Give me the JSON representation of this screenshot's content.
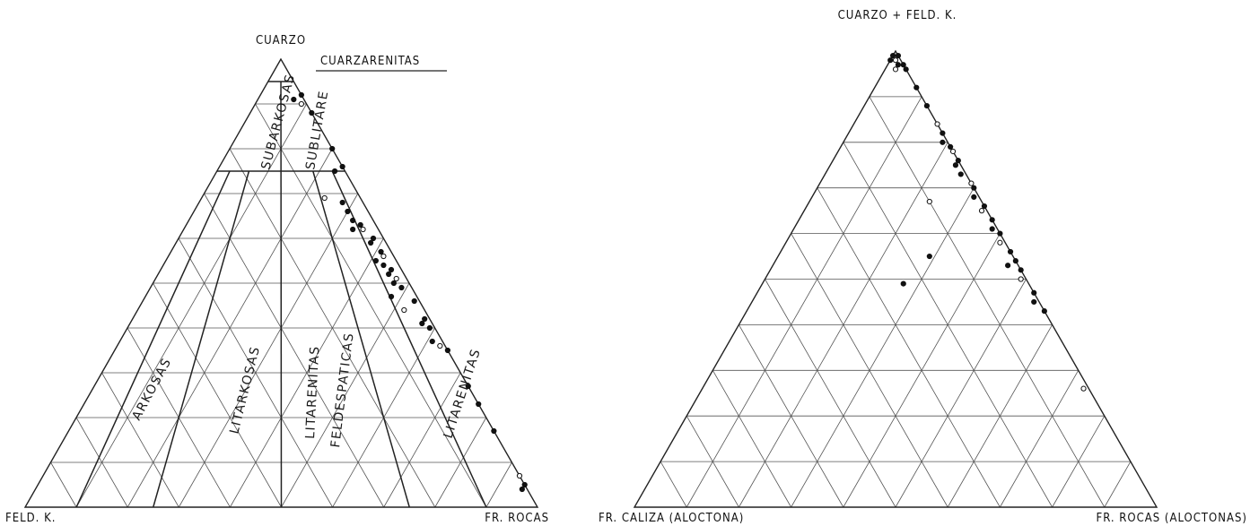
{
  "left_diagram": {
    "apex_top": "CUARZO",
    "apex_left": "FELD. K.",
    "apex_right": "FR. ROCAS",
    "fields": {
      "cuarzarenitas": "CUARZARENITAS",
      "subarkosas": "SUBARKOSAS",
      "sublitarenitas": "SUBLITARE",
      "arkosas": "ARKOSAS",
      "litarkosas": "LITARKOSAS",
      "litarenitas_feldespaticas_1": "LITARENITAS",
      "litarenitas_feldespaticas_2": "FELDESPATICAS",
      "litarenitas": "LITARENITAS"
    }
  },
  "right_diagram": {
    "apex_top": "CUARZO + FELD. K.",
    "apex_left": "FR. CALIZA (ALOCTONA)",
    "apex_right": "FR. ROCAS (ALOCTONAS)"
  },
  "chart_data": [
    {
      "type": "scatter",
      "ternary": true,
      "axes": [
        "CUARZO",
        "FELD. K.",
        "FR. ROCAS"
      ],
      "units": "percent",
      "points": [
        [
          92,
          0,
          8
        ],
        [
          91,
          2,
          7
        ],
        [
          90,
          1,
          9
        ],
        [
          88,
          0,
          12
        ],
        [
          80,
          0,
          20
        ],
        [
          75,
          2,
          23
        ],
        [
          76,
          0,
          24
        ],
        [
          69,
          7,
          24
        ],
        [
          68,
          4,
          28
        ],
        [
          66,
          4,
          30
        ],
        [
          64,
          4,
          32
        ],
        [
          63,
          3,
          34
        ],
        [
          62,
          3,
          35
        ],
        [
          62,
          5,
          33
        ],
        [
          60,
          2,
          38
        ],
        [
          59,
          3,
          38
        ],
        [
          57,
          2,
          41
        ],
        [
          56,
          2,
          42
        ],
        [
          55,
          4,
          41
        ],
        [
          54,
          3,
          43
        ],
        [
          53,
          2,
          45
        ],
        [
          52,
          3,
          45
        ],
        [
          51,
          2,
          47
        ],
        [
          50,
          3,
          47
        ],
        [
          49,
          2,
          49
        ],
        [
          47,
          5,
          48
        ],
        [
          46,
          1,
          53
        ],
        [
          44,
          4,
          52
        ],
        [
          42,
          1,
          57
        ],
        [
          41,
          2,
          57
        ],
        [
          40,
          1,
          59
        ],
        [
          37,
          2,
          61
        ],
        [
          36,
          1,
          63
        ],
        [
          35,
          0,
          65
        ],
        [
          27,
          0,
          73
        ],
        [
          23,
          0,
          77
        ],
        [
          17,
          0,
          83
        ],
        [
          7,
          0,
          93
        ],
        [
          5,
          0,
          95
        ],
        [
          4,
          1,
          95
        ]
      ]
    },
    {
      "type": "scatter",
      "ternary": true,
      "axes": [
        "CUARZO + FELD. K.",
        "FR. CALIZA (ALOCTONA)",
        "FR. ROCAS (ALOCTONAS)"
      ],
      "units": "percent",
      "points": [
        [
          99,
          1,
          0
        ],
        [
          99,
          0,
          1
        ],
        [
          98,
          1,
          1
        ],
        [
          98,
          2,
          0
        ],
        [
          97,
          1,
          2
        ],
        [
          97,
          0,
          3
        ],
        [
          96,
          2,
          2
        ],
        [
          96,
          0,
          4
        ],
        [
          92,
          0,
          8
        ],
        [
          88,
          0,
          12
        ],
        [
          84,
          0,
          16
        ],
        [
          82,
          0,
          18
        ],
        [
          80,
          1,
          19
        ],
        [
          79,
          0,
          21
        ],
        [
          78,
          0,
          22
        ],
        [
          76,
          0,
          24
        ],
        [
          75,
          1,
          24
        ],
        [
          73,
          1,
          26
        ],
        [
          71,
          0,
          29
        ],
        [
          70,
          0,
          30
        ],
        [
          68,
          1,
          31
        ],
        [
          66,
          0,
          34
        ],
        [
          65,
          1,
          34
        ],
        [
          63,
          0,
          37
        ],
        [
          61,
          1,
          38
        ],
        [
          60,
          0,
          40
        ],
        [
          58,
          1,
          41
        ],
        [
          56,
          0,
          44
        ],
        [
          54,
          0,
          46
        ],
        [
          52,
          0,
          48
        ],
        [
          50,
          1,
          49
        ],
        [
          47,
          0,
          53
        ],
        [
          45,
          1,
          54
        ],
        [
          43,
          0,
          57
        ],
        [
          67,
          10,
          23
        ],
        [
          55,
          16,
          29
        ],
        [
          49,
          24,
          27
        ],
        [
          53,
          2,
          45
        ],
        [
          26,
          1,
          73
        ]
      ]
    }
  ]
}
